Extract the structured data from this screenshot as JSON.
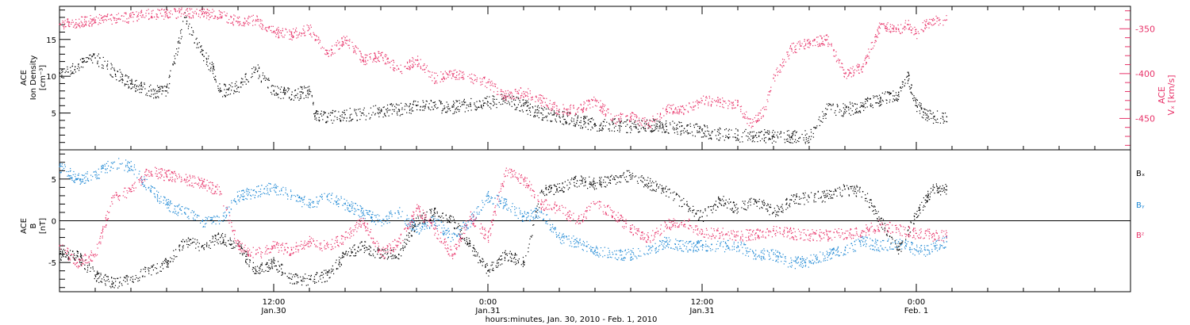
{
  "chart_data": [
    {
      "type": "scatter",
      "panel": "top",
      "left_axis": {
        "label_lines": [
          "ACE",
          "Ion Density",
          "[cm⁻³]"
        ],
        "range": [
          0,
          19.5
        ],
        "tick_labels": [
          "5",
          "10",
          "15"
        ],
        "tick_values": [
          5,
          10,
          15
        ]
      },
      "right_axis": {
        "label_lines": [
          "ACE",
          "Vₓ [km/s]"
        ],
        "range": [
          -485,
          -325
        ],
        "tick_labels": [
          "-350",
          "-400",
          "-450"
        ],
        "tick_values": [
          -350,
          -400,
          -450
        ],
        "color": "#e8346a"
      },
      "series": [
        {
          "name": "",
          "axis": "left",
          "color": "#000000",
          "x_hours": [
            0,
            2,
            4,
            5,
            6,
            7,
            8,
            8.6,
            9,
            10,
            11,
            12,
            13,
            14,
            14.3,
            15,
            16,
            17,
            18,
            18.3,
            19,
            20,
            21,
            22,
            23,
            24,
            25,
            26,
            27,
            28,
            29,
            30,
            31,
            32,
            33,
            34,
            35,
            36,
            37,
            38,
            39,
            40,
            41,
            42,
            43,
            44,
            45,
            46,
            47,
            47.5,
            48,
            48.5,
            49,
            49.7
          ],
          "y": [
            10.5,
            12.5,
            9,
            8,
            8,
            18,
            13,
            11,
            8,
            8.5,
            11,
            8,
            7.5,
            8,
            4.5,
            4.5,
            4.8,
            5,
            5.3,
            5.5,
            5.5,
            6,
            6,
            5.8,
            6.2,
            6.5,
            6.8,
            6,
            5,
            4.5,
            4,
            3.5,
            3.5,
            3.2,
            3.4,
            3.2,
            2.9,
            2.6,
            2.2,
            2,
            2,
            1.8,
            1.8,
            1.8,
            5.5,
            5.5,
            6,
            7,
            7.5,
            10,
            6,
            5,
            4.5,
            4.5
          ]
        },
        {
          "name": "",
          "axis": "right",
          "color": "#e8346a",
          "x_hours": [
            0,
            2,
            4,
            5,
            6,
            7,
            8,
            9,
            10,
            11,
            12,
            13,
            14,
            15,
            16,
            17,
            18,
            19,
            20,
            21,
            22,
            23,
            24,
            25,
            26,
            27,
            28,
            29,
            30,
            31,
            32,
            33,
            34,
            35,
            36,
            37,
            38,
            38.7,
            39.5,
            40,
            41,
            42,
            43,
            44,
            45,
            46,
            47,
            47.5,
            48,
            48.5,
            49,
            49.7
          ],
          "y": [
            -345,
            -340,
            -337,
            -333,
            -333,
            -332,
            -333,
            -334,
            -342,
            -340,
            -353,
            -356,
            -350,
            -378,
            -360,
            -385,
            -380,
            -395,
            -385,
            -405,
            -400,
            -405,
            -410,
            -425,
            -420,
            -430,
            -440,
            -440,
            -430,
            -450,
            -448,
            -455,
            -440,
            -440,
            -430,
            -432,
            -435,
            -455,
            -440,
            -405,
            -372,
            -365,
            -362,
            -400,
            -392,
            -345,
            -350,
            -345,
            -355,
            -345,
            -340,
            -340
          ]
        }
      ]
    },
    {
      "type": "scatter",
      "panel": "bottom",
      "left_axis": {
        "label_lines": [
          "ACE",
          "B",
          "[nT]"
        ],
        "range": [
          -8.5,
          8.5
        ],
        "tick_labels": [
          "5",
          "0",
          "-5"
        ],
        "tick_values": [
          5,
          0,
          -5
        ]
      },
      "zero_line": 0,
      "legend": [
        "Bₓ",
        "Bᵧ",
        "Bᶻ"
      ],
      "series": [
        {
          "name": "Bₓ",
          "color": "#000000",
          "x_hours": [
            0,
            1,
            2,
            3,
            4,
            5,
            6,
            7,
            8,
            9,
            10,
            11,
            12,
            13,
            14,
            15,
            16,
            17,
            18,
            19,
            20,
            21,
            22,
            23,
            24,
            25,
            26,
            27,
            28,
            29,
            30,
            31,
            32,
            33,
            34,
            35,
            36,
            37,
            38,
            39,
            40,
            41,
            42,
            43,
            44,
            45,
            46,
            47,
            48,
            48.5,
            49,
            49.7
          ],
          "y": [
            -4,
            -4.2,
            -6.5,
            -7.5,
            -6.8,
            -6,
            -5,
            -2.5,
            -3,
            -2,
            -3,
            -6,
            -5,
            -7,
            -7,
            -6.5,
            -4,
            -3,
            -4,
            -4,
            0,
            1,
            0,
            -3,
            -6,
            -4,
            -5,
            3.5,
            4,
            4.8,
            4.5,
            5,
            5.5,
            4.5,
            3.5,
            2,
            0.5,
            2.5,
            1.5,
            2.5,
            1,
            2.5,
            2.8,
            3,
            3.8,
            3.5,
            0,
            -3.5,
            0.8,
            2.5,
            4,
            3.7
          ]
        },
        {
          "name": "Bᵧ",
          "color": "#1e88d4",
          "x_hours": [
            0,
            1,
            2,
            3,
            4,
            5,
            6,
            7,
            8,
            9,
            10,
            11,
            12,
            13,
            14,
            15,
            16,
            17,
            18,
            19,
            20,
            21,
            22,
            23,
            24,
            25,
            26,
            27,
            28,
            29,
            30,
            31,
            32,
            33,
            34,
            35,
            36,
            37,
            38,
            39,
            40,
            41,
            42,
            43,
            44,
            45,
            46,
            47,
            48,
            48.5,
            49,
            49.7
          ],
          "y": [
            6.5,
            5,
            5.5,
            7,
            6.5,
            4,
            2,
            1,
            0,
            0,
            3,
            3.5,
            4,
            3,
            2,
            3,
            2,
            1,
            0,
            1,
            -1,
            0,
            -2,
            0,
            3,
            2,
            0.5,
            1,
            -2,
            -2.5,
            -3.5,
            -4,
            -4,
            -3.5,
            -2.5,
            -3,
            -3,
            -3,
            -3,
            -4,
            -4,
            -5,
            -4.8,
            -4,
            -3.5,
            -2.5,
            -3,
            -2.5,
            -3.5,
            -3.5,
            -3,
            -2.5
          ]
        },
        {
          "name": "Bᶻ",
          "color": "#e8346a",
          "x_hours": [
            0,
            1,
            2,
            3,
            4,
            5,
            6,
            7,
            8,
            9,
            10,
            11,
            12,
            13,
            14,
            15,
            16,
            17,
            18,
            19,
            20,
            21,
            22,
            23,
            24,
            25,
            26,
            27,
            28,
            29,
            30,
            31,
            32,
            33,
            34,
            35,
            36,
            37,
            38,
            39,
            40,
            41,
            42,
            43,
            44,
            45,
            46,
            47,
            48,
            48.5,
            49,
            49.7
          ],
          "y": [
            -3,
            -5,
            -4,
            3,
            3.5,
            6,
            5.5,
            5,
            4.5,
            3.5,
            -3,
            -4,
            -3,
            -3.5,
            -2.5,
            -3,
            -2,
            0,
            -4,
            -2.5,
            1.5,
            -1,
            -4,
            0.5,
            -2,
            6,
            5,
            2,
            1.5,
            0,
            2,
            1,
            -1,
            -2,
            -0.5,
            0,
            -1.5,
            -1.5,
            -1.8,
            -1.5,
            -1.2,
            -1.5,
            -1.7,
            -1.7,
            -1.5,
            -1.2,
            -0.5,
            -1,
            -1.5,
            -1.5,
            -1.8,
            -1.8
          ]
        }
      ]
    }
  ],
  "x_axis": {
    "range_hours": [
      0,
      60
    ],
    "major_ticks": [
      {
        "hours": 12,
        "line1": "12:00",
        "line2": "Jan.30"
      },
      {
        "hours": 24,
        "line1": "0:00",
        "line2": "Jan.31"
      },
      {
        "hours": 36,
        "line1": "12:00",
        "line2": "Jan.31"
      },
      {
        "hours": 48,
        "line1": "0:00",
        "line2": "Feb. 1"
      }
    ],
    "label": "hours:minutes, Jan. 30, 2010 - Feb.  1, 2010"
  }
}
